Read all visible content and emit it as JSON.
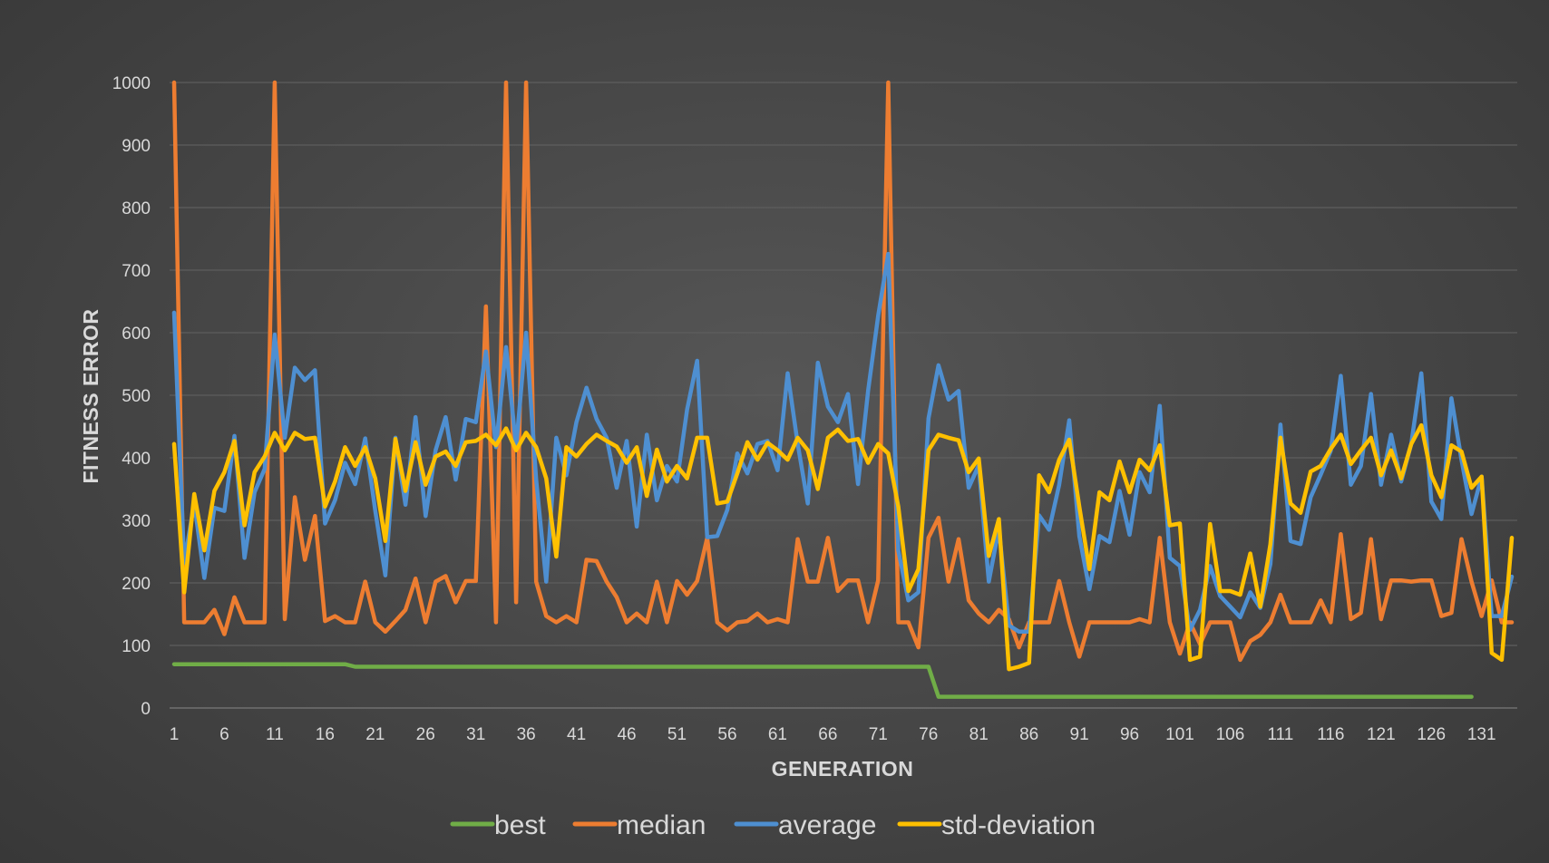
{
  "chart_data": {
    "type": "line",
    "title": "",
    "xlabel": "GENERATION",
    "ylabel": "FITNESS ERROR",
    "ylim": [
      0,
      1000
    ],
    "yticks": [
      0,
      100,
      200,
      300,
      400,
      500,
      600,
      700,
      800,
      900,
      1000
    ],
    "xlim": [
      1,
      134
    ],
    "xticks": [
      1,
      6,
      11,
      16,
      21,
      26,
      31,
      36,
      41,
      46,
      51,
      56,
      61,
      66,
      71,
      76,
      81,
      86,
      91,
      96,
      101,
      106,
      111,
      116,
      121,
      126,
      131
    ],
    "grid": "horizontal",
    "legend_position": "bottom",
    "series": [
      {
        "name": "best",
        "color": "#70ad47",
        "values": [
          70,
          70,
          70,
          70,
          70,
          70,
          70,
          70,
          70,
          70,
          70,
          70,
          70,
          70,
          70,
          70,
          70,
          70,
          66,
          66,
          66,
          66,
          66,
          66,
          66,
          66,
          66,
          66,
          66,
          66,
          66,
          66,
          66,
          66,
          66,
          66,
          66,
          66,
          66,
          66,
          66,
          66,
          66,
          66,
          66,
          66,
          66,
          66,
          66,
          66,
          66,
          66,
          66,
          66,
          66,
          66,
          66,
          66,
          66,
          66,
          66,
          66,
          66,
          66,
          66,
          66,
          66,
          66,
          66,
          66,
          66,
          66,
          66,
          66,
          66,
          66,
          18,
          18,
          18,
          18,
          18,
          18,
          18,
          18,
          18,
          18,
          18,
          18,
          18,
          18,
          18,
          18,
          18,
          18,
          18,
          18,
          18,
          18,
          18,
          18,
          18,
          18,
          18,
          18,
          18,
          18,
          18,
          18,
          18,
          18,
          18,
          18,
          18,
          18,
          18,
          18,
          18,
          18,
          18,
          18,
          18,
          18,
          18,
          18,
          18,
          18,
          18,
          18,
          18,
          18
        ]
      },
      {
        "name": "median",
        "color": "#ed7d31",
        "values": [
          1000,
          137,
          137,
          137,
          157,
          118,
          177,
          137,
          137,
          137,
          1000,
          142,
          337,
          237,
          307,
          139,
          147,
          137,
          137,
          202,
          137,
          122,
          139,
          157,
          207,
          137,
          202,
          211,
          169,
          203,
          203,
          642,
          137,
          1000,
          169,
          1000,
          202,
          147,
          137,
          147,
          137,
          237,
          235,
          202,
          177,
          137,
          151,
          137,
          202,
          137,
          203,
          181,
          203,
          272,
          137,
          124,
          137,
          139,
          151,
          137,
          142,
          137,
          270,
          202,
          202,
          272,
          187,
          204,
          204,
          137,
          204,
          1000,
          137,
          137,
          97,
          272,
          304,
          202,
          270,
          172,
          151,
          137,
          157,
          142,
          97,
          137,
          137,
          137,
          203,
          137,
          82,
          137,
          137,
          137,
          137,
          137,
          142,
          137,
          272,
          137,
          87,
          137,
          102,
          137,
          137,
          137,
          77,
          107,
          117,
          137,
          181,
          137,
          137,
          137,
          172,
          137,
          278,
          142,
          152,
          270,
          142,
          204,
          204,
          202,
          204,
          204,
          147,
          152,
          270,
          202,
          147,
          204,
          137,
          137
        ]
      },
      {
        "name": "average",
        "color": "#4e8fd1",
        "values": [
          632,
          232,
          328,
          208,
          320,
          315,
          435,
          240,
          345,
          382,
          597,
          432,
          544,
          524,
          540,
          295,
          332,
          392,
          358,
          431,
          315,
          212,
          432,
          325,
          465,
          307,
          412,
          465,
          365,
          462,
          457,
          570,
          417,
          577,
          417,
          600,
          365,
          202,
          432,
          372,
          457,
          512,
          462,
          432,
          352,
          427,
          290,
          437,
          332,
          387,
          362,
          477,
          555,
          273,
          275,
          317,
          407,
          375,
          422,
          427,
          380,
          535,
          422,
          327,
          552,
          482,
          457,
          502,
          358,
          507,
          627,
          726,
          252,
          172,
          185,
          463,
          548,
          493,
          507,
          352,
          388,
          202,
          287,
          132,
          122,
          122,
          308,
          285,
          357,
          460,
          275,
          190,
          275,
          265,
          347,
          277,
          377,
          345,
          483,
          240,
          227,
          125,
          157,
          227,
          179,
          162,
          145,
          185,
          160,
          230,
          453,
          267,
          262,
          337,
          373,
          411,
          531,
          357,
          387,
          502,
          357,
          437,
          362,
          422,
          535,
          330,
          302,
          495,
          397,
          310,
          370,
          147,
          147,
          210
        ]
      },
      {
        "name": "std-deviation",
        "color": "#ffc000",
        "values": [
          422,
          185,
          342,
          252,
          347,
          377,
          427,
          292,
          377,
          402,
          440,
          412,
          440,
          430,
          432,
          322,
          362,
          417,
          387,
          417,
          367,
          267,
          430,
          347,
          425,
          357,
          402,
          410,
          387,
          425,
          427,
          437,
          420,
          447,
          412,
          440,
          417,
          367,
          242,
          417,
          402,
          422,
          437,
          427,
          418,
          392,
          417,
          339,
          413,
          362,
          387,
          367,
          432,
          432,
          327,
          330,
          375,
          425,
          397,
          424,
          412,
          397,
          432,
          412,
          350,
          432,
          445,
          427,
          430,
          392,
          422,
          407,
          322,
          187,
          222,
          412,
          437,
          432,
          428,
          377,
          399,
          243,
          302,
          62,
          66,
          72,
          372,
          345,
          397,
          429,
          322,
          222,
          345,
          332,
          394,
          345,
          397,
          380,
          420,
          292,
          295,
          77,
          82,
          294,
          187,
          187,
          181,
          247,
          162,
          262,
          432,
          327,
          312,
          378,
          387,
          414,
          437,
          390,
          412,
          432,
          372,
          412,
          367,
          422,
          452,
          372,
          337,
          420,
          410,
          352,
          370,
          88,
          77,
          272
        ]
      }
    ]
  }
}
